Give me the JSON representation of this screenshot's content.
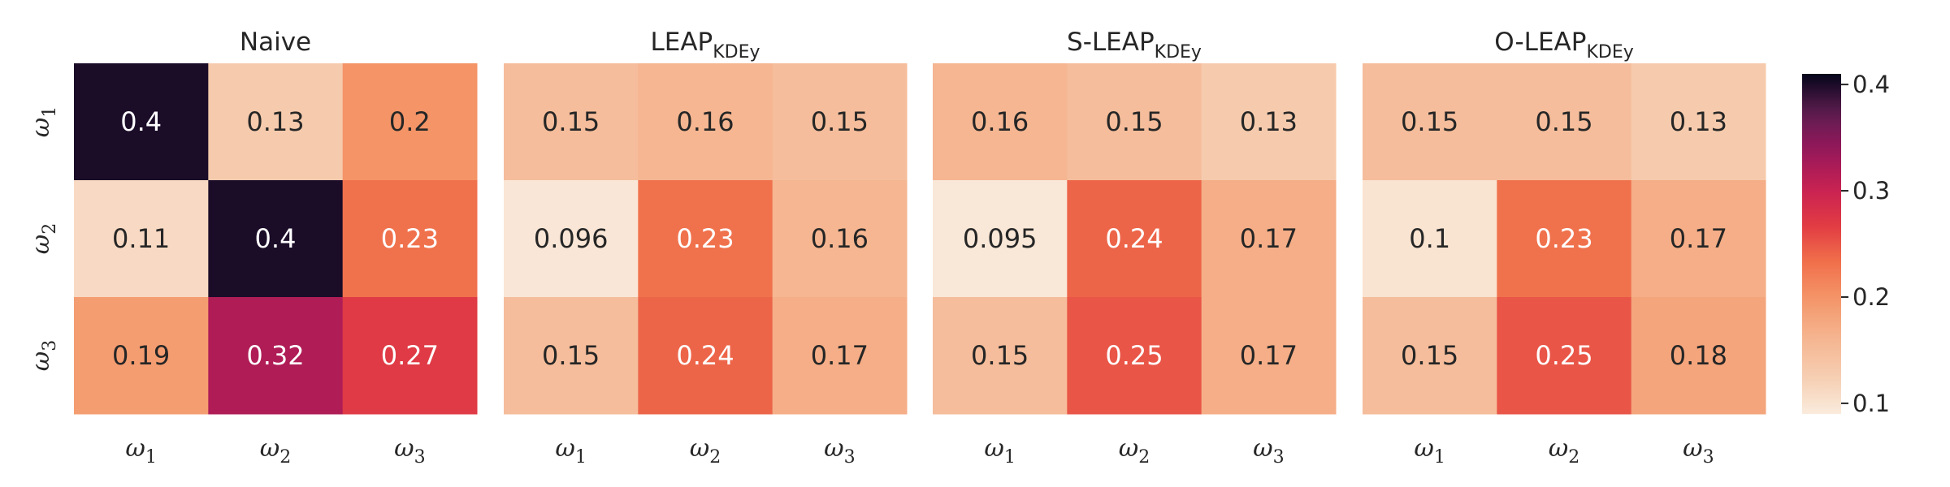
{
  "chart_data": {
    "type": "heatmap",
    "row_labels": [
      "ω1",
      "ω2",
      "ω3"
    ],
    "col_labels": [
      "ω1",
      "ω2",
      "ω3"
    ],
    "panels": [
      {
        "title": "Naive",
        "values": [
          [
            0.4,
            0.13,
            0.2
          ],
          [
            0.11,
            0.4,
            0.23
          ],
          [
            0.19,
            0.32,
            0.27
          ]
        ],
        "labels": [
          [
            "0.4",
            "0.13",
            "0.2"
          ],
          [
            "0.11",
            "0.4",
            "0.23"
          ],
          [
            "0.19",
            "0.32",
            "0.27"
          ]
        ]
      },
      {
        "title": "LEAP",
        "title_subscript": "KDEy",
        "values": [
          [
            0.15,
            0.16,
            0.15
          ],
          [
            0.096,
            0.23,
            0.16
          ],
          [
            0.15,
            0.24,
            0.17
          ]
        ],
        "labels": [
          [
            "0.15",
            "0.16",
            "0.15"
          ],
          [
            "0.096",
            "0.23",
            "0.16"
          ],
          [
            "0.15",
            "0.24",
            "0.17"
          ]
        ]
      },
      {
        "title": "S-LEAP",
        "title_subscript": "KDEy",
        "values": [
          [
            0.16,
            0.15,
            0.13
          ],
          [
            0.095,
            0.24,
            0.17
          ],
          [
            0.15,
            0.25,
            0.17
          ]
        ],
        "labels": [
          [
            "0.16",
            "0.15",
            "0.13"
          ],
          [
            "0.095",
            "0.24",
            "0.17"
          ],
          [
            "0.15",
            "0.25",
            "0.17"
          ]
        ]
      },
      {
        "title": "O-LEAP",
        "title_subscript": "KDEy",
        "values": [
          [
            0.15,
            0.15,
            0.13
          ],
          [
            0.1,
            0.23,
            0.17
          ],
          [
            0.15,
            0.25,
            0.18
          ]
        ],
        "labels": [
          [
            "0.15",
            "0.15",
            "0.13"
          ],
          [
            "0.1",
            "0.23",
            "0.17"
          ],
          [
            "0.15",
            "0.25",
            "0.18"
          ]
        ]
      }
    ],
    "colorbar": {
      "colormap": "rocket_r",
      "range": [
        0.09,
        0.41
      ],
      "ticks": [
        0.1,
        0.2,
        0.3,
        0.4
      ],
      "tick_labels": [
        "0.1",
        "0.2",
        "0.3",
        "0.4"
      ]
    },
    "grid": false
  }
}
